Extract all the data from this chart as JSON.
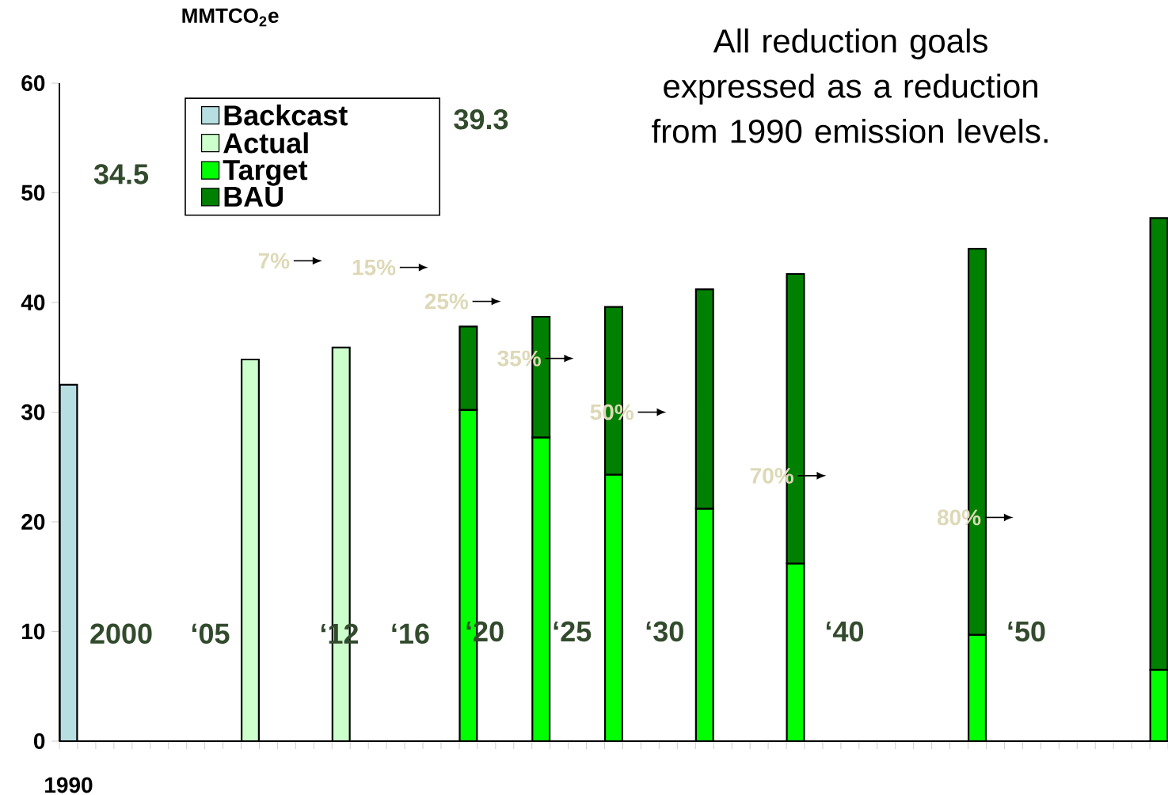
{
  "chart_data": {
    "type": "bar",
    "stacked": true,
    "title": "All reduction goals expressed as a reduction from 1990 emission levels.",
    "ylabel": "MMTCO$_{2}$e",
    "categories": [
      "1990",
      null,
      null,
      null,
      null,
      null,
      null,
      null,
      null,
      null,
      null,
      null,
      null,
      null,
      null,
      null,
      null,
      null,
      null,
      null,
      null,
      null,
      null,
      null,
      null,
      null,
      null,
      null,
      null,
      null,
      null,
      null,
      null,
      null,
      null,
      null,
      null,
      null,
      null,
      null,
      null,
      null,
      null,
      null,
      null,
      null,
      null,
      null,
      null,
      null,
      null,
      null,
      null,
      null,
      null,
      null,
      null,
      null,
      null,
      null,
      null
    ],
    "series": [
      {
        "name": "Backcast",
        "color": "#b7dfe2",
        "values": [
          32.5,
          null,
          null,
          null,
          null,
          null,
          null,
          null,
          null,
          null,
          null,
          null,
          null,
          null,
          null,
          null,
          null,
          null,
          null,
          null,
          null,
          null,
          null,
          null,
          null,
          null,
          null,
          null,
          null,
          null,
          null,
          null,
          null,
          null,
          null,
          null,
          null,
          null,
          null,
          null,
          null,
          null,
          null,
          null,
          null,
          null,
          null,
          null,
          null,
          null,
          null,
          null,
          null,
          null,
          null,
          null,
          null,
          null,
          null,
          null,
          null
        ]
      },
      {
        "name": "Actual",
        "color": "#ccffcc",
        "values": [
          null,
          null,
          null,
          null,
          null,
          null,
          null,
          null,
          null,
          null,
          34.8,
          null,
          null,
          null,
          null,
          35.9,
          null,
          null,
          null,
          null,
          null,
          null,
          null,
          null,
          null,
          null,
          null,
          null,
          null,
          null,
          null,
          null,
          null,
          null,
          null,
          null,
          null,
          null,
          null,
          null,
          null,
          null,
          null,
          null,
          null,
          null,
          null,
          null,
          null,
          null,
          null,
          null,
          null,
          null,
          null,
          null,
          null,
          null,
          null,
          null,
          null
        ]
      },
      {
        "name": "Target",
        "color": "#00ff00",
        "values": [
          null,
          null,
          null,
          null,
          null,
          null,
          null,
          null,
          null,
          null,
          null,
          null,
          null,
          null,
          null,
          null,
          null,
          null,
          null,
          null,
          null,
          null,
          30.2,
          null,
          null,
          null,
          27.7,
          null,
          null,
          null,
          24.3,
          null,
          null,
          null,
          null,
          21.2,
          null,
          null,
          null,
          null,
          16.2,
          null,
          null,
          null,
          null,
          null,
          null,
          null,
          null,
          null,
          9.7,
          null,
          null,
          null,
          null,
          null,
          null,
          null,
          null,
          null,
          6.5
        ]
      },
      {
        "name": "BAU",
        "color": "#008000",
        "values": [
          null,
          null,
          null,
          null,
          null,
          null,
          null,
          null,
          null,
          null,
          null,
          null,
          null,
          null,
          null,
          null,
          null,
          null,
          null,
          null,
          null,
          null,
          7.6,
          null,
          null,
          null,
          11.0,
          null,
          null,
          null,
          15.3,
          null,
          null,
          null,
          null,
          20.0,
          null,
          null,
          null,
          null,
          26.4,
          null,
          null,
          null,
          null,
          null,
          null,
          null,
          null,
          null,
          35.2,
          null,
          null,
          null,
          null,
          null,
          null,
          null,
          null,
          null,
          41.2
        ]
      }
    ],
    "ylim": [
      0,
      60
    ],
    "yticks": [
      0,
      10,
      20,
      30,
      40,
      50,
      60
    ],
    "legend": "top left",
    "annotations": [
      "34.5",
      "39.3",
      "2000",
      "‘05",
      "‘12",
      "‘16",
      "‘20",
      "‘25",
      "‘30",
      "‘40",
      "‘50",
      "7%",
      "15%",
      "25%",
      "35%",
      "50%",
      "70%",
      "80%"
    ]
  }
}
